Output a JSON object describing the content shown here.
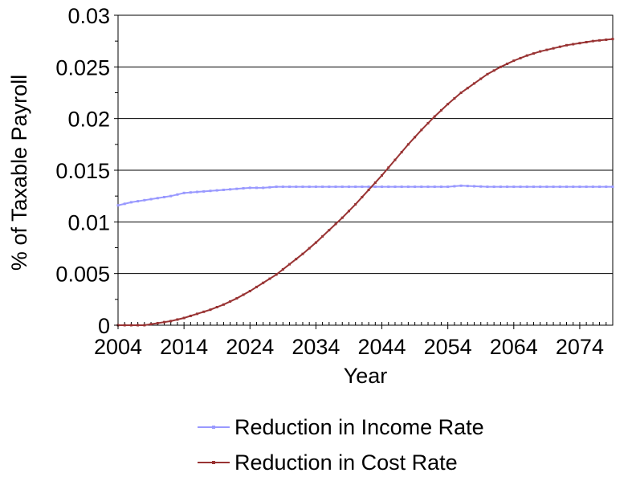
{
  "chart_data": {
    "type": "line",
    "xlabel": "Year",
    "ylabel": "% of Taxable Payroll",
    "xlim": [
      2004,
      2079
    ],
    "ylim": [
      0,
      0.03
    ],
    "x_ticks": [
      "2004",
      "2014",
      "2024",
      "2034",
      "2044",
      "2054",
      "2064",
      "2074"
    ],
    "y_ticks": [
      "0",
      "0.005",
      "0.01",
      "0.015",
      "0.02",
      "0.025",
      "0.03"
    ],
    "grid": "horizontal",
    "legend_position": "bottom",
    "x": [
      2004,
      2014,
      2024,
      2034,
      2044,
      2054,
      2064,
      2074,
      2079
    ],
    "series": [
      {
        "name": "Reduction in Income Rate",
        "color": "#9999ff",
        "marker": "square",
        "points": [
          [
            2004,
            0.0116
          ],
          [
            2006,
            0.0119
          ],
          [
            2008,
            0.0121
          ],
          [
            2010,
            0.0123
          ],
          [
            2012,
            0.0125
          ],
          [
            2014,
            0.0128
          ],
          [
            2016,
            0.0129
          ],
          [
            2018,
            0.013
          ],
          [
            2020,
            0.0131
          ],
          [
            2022,
            0.0132
          ],
          [
            2024,
            0.0133
          ],
          [
            2026,
            0.0133
          ],
          [
            2028,
            0.0134
          ],
          [
            2030,
            0.0134
          ],
          [
            2034,
            0.0134
          ],
          [
            2044,
            0.0134
          ],
          [
            2054,
            0.0134
          ],
          [
            2056,
            0.0135
          ],
          [
            2060,
            0.0134
          ],
          [
            2064,
            0.0134
          ],
          [
            2070,
            0.0134
          ],
          [
            2079,
            0.0134
          ]
        ]
      },
      {
        "name": "Reduction in Cost Rate",
        "color": "#993333",
        "marker": "square",
        "points": [
          [
            2004,
            0.0
          ],
          [
            2006,
            0.0
          ],
          [
            2008,
            0.0
          ],
          [
            2010,
            0.0002
          ],
          [
            2012,
            0.0004
          ],
          [
            2014,
            0.0007
          ],
          [
            2016,
            0.0011
          ],
          [
            2018,
            0.0015
          ],
          [
            2020,
            0.002
          ],
          [
            2022,
            0.0026
          ],
          [
            2024,
            0.0033
          ],
          [
            2026,
            0.0041
          ],
          [
            2028,
            0.0049
          ],
          [
            2030,
            0.0059
          ],
          [
            2032,
            0.0069
          ],
          [
            2034,
            0.008
          ],
          [
            2036,
            0.0092
          ],
          [
            2038,
            0.0104
          ],
          [
            2040,
            0.0117
          ],
          [
            2042,
            0.0131
          ],
          [
            2044,
            0.0145
          ],
          [
            2046,
            0.016
          ],
          [
            2048,
            0.0175
          ],
          [
            2050,
            0.0189
          ],
          [
            2052,
            0.0202
          ],
          [
            2054,
            0.0214
          ],
          [
            2056,
            0.0225
          ],
          [
            2058,
            0.0234
          ],
          [
            2060,
            0.0243
          ],
          [
            2062,
            0.025
          ],
          [
            2064,
            0.0256
          ],
          [
            2066,
            0.0261
          ],
          [
            2068,
            0.0265
          ],
          [
            2070,
            0.0268
          ],
          [
            2072,
            0.0271
          ],
          [
            2074,
            0.0273
          ],
          [
            2076,
            0.0275
          ],
          [
            2079,
            0.0277
          ]
        ]
      }
    ]
  }
}
